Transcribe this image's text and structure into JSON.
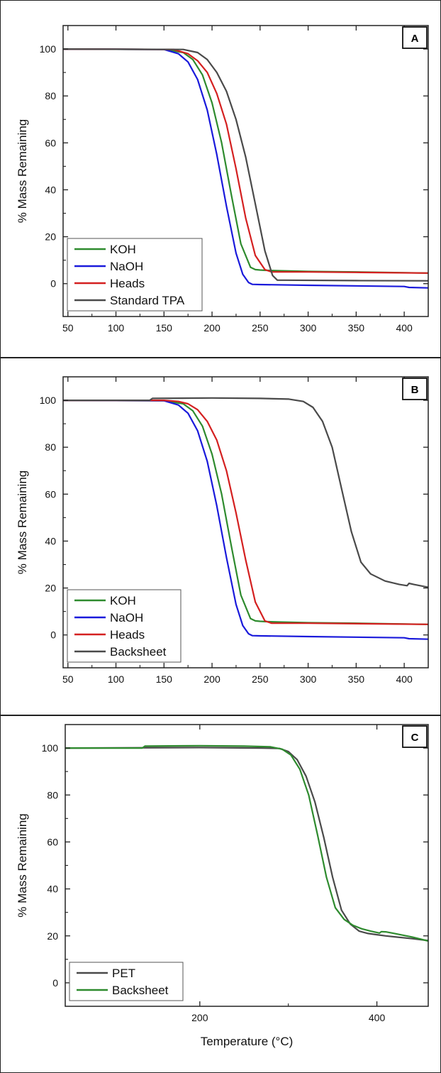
{
  "chart_data": [
    {
      "id": "A",
      "type": "line",
      "panel_label": "A",
      "xlabel": "",
      "ylabel": "% Mass Remaining",
      "xlim": [
        45,
        425
      ],
      "ylim": [
        -14,
        110
      ],
      "xticks": [
        50,
        100,
        150,
        200,
        250,
        300,
        350,
        400
      ],
      "yticks": [
        0,
        20,
        40,
        60,
        80,
        100
      ],
      "legend_position": "bottom-left",
      "series": [
        {
          "name": "KOH",
          "color": "#2e8b2e",
          "x": [
            45,
            150,
            170,
            180,
            190,
            200,
            210,
            220,
            230,
            240,
            245,
            250,
            255,
            270,
            300,
            350,
            425
          ],
          "y": [
            100,
            99.8,
            98.5,
            95.5,
            89,
            77,
            60,
            38,
            17,
            7,
            6,
            5.8,
            5.7,
            5.5,
            5.2,
            5,
            4.5
          ]
        },
        {
          "name": "NaOH",
          "color": "#1a1adb",
          "x": [
            45,
            150,
            165,
            175,
            185,
            195,
            205,
            215,
            225,
            232,
            238,
            242,
            250,
            300,
            400,
            405,
            425
          ],
          "y": [
            100,
            99.8,
            98,
            94.5,
            87,
            74,
            55,
            33,
            13,
            4,
            0.5,
            -0.3,
            -0.4,
            -0.7,
            -1.2,
            -1.6,
            -1.8
          ]
        },
        {
          "name": "Heads",
          "color": "#d42020",
          "x": [
            45,
            160,
            175,
            185,
            195,
            205,
            215,
            225,
            235,
            245,
            255,
            262,
            270,
            300,
            350,
            425
          ],
          "y": [
            100,
            99.8,
            98,
            95,
            90,
            81,
            68,
            49,
            28,
            12,
            6,
            5,
            5,
            5,
            4.8,
            4.5
          ]
        },
        {
          "name": "Standard TPA",
          "color": "#4a4a4a",
          "x": [
            45,
            170,
            185,
            195,
            205,
            215,
            225,
            235,
            245,
            255,
            263,
            268,
            275,
            350,
            425
          ],
          "y": [
            100,
            99.8,
            98.5,
            95.5,
            90,
            82,
            70,
            54,
            34,
            14,
            3.5,
            1.5,
            1.5,
            1.3,
            1.2
          ]
        }
      ]
    },
    {
      "id": "B",
      "type": "line",
      "panel_label": "B",
      "xlabel": "",
      "ylabel": "% Mass Remaining",
      "xlim": [
        45,
        425
      ],
      "ylim": [
        -14,
        110
      ],
      "xticks": [
        50,
        100,
        150,
        200,
        250,
        300,
        350,
        400
      ],
      "yticks": [
        0,
        20,
        40,
        60,
        80,
        100
      ],
      "legend_position": "bottom-left",
      "series": [
        {
          "name": "KOH",
          "color": "#2e8b2e",
          "x": [
            45,
            150,
            170,
            180,
            190,
            200,
            210,
            220,
            230,
            240,
            245,
            250,
            255,
            270,
            300,
            350,
            425
          ],
          "y": [
            100,
            99.8,
            98.5,
            95.5,
            89,
            77,
            60,
            38,
            17,
            7,
            6,
            5.8,
            5.7,
            5.5,
            5.2,
            5,
            4.5
          ]
        },
        {
          "name": "NaOH",
          "color": "#1a1adb",
          "x": [
            45,
            150,
            165,
            175,
            185,
            195,
            205,
            215,
            225,
            232,
            238,
            242,
            250,
            300,
            400,
            405,
            425
          ],
          "y": [
            100,
            99.8,
            98,
            94.5,
            87,
            74,
            55,
            33,
            13,
            4,
            0.5,
            -0.3,
            -0.4,
            -0.7,
            -1.2,
            -1.6,
            -1.8
          ]
        },
        {
          "name": "Heads",
          "color": "#d42020",
          "x": [
            45,
            150,
            165,
            175,
            185,
            195,
            205,
            215,
            225,
            235,
            245,
            255,
            262,
            270,
            300,
            425
          ],
          "y": [
            100,
            100,
            99.5,
            98.5,
            96,
            91,
            83,
            70,
            52,
            32,
            14,
            6,
            5,
            5,
            5,
            4.5
          ]
        },
        {
          "name": "Backsheet",
          "color": "#4a4a4a",
          "x": [
            45,
            135,
            138,
            200,
            250,
            280,
            295,
            305,
            315,
            325,
            335,
            345,
            355,
            365,
            380,
            395,
            403,
            405,
            410,
            425
          ],
          "y": [
            100,
            100,
            100.8,
            101,
            100.8,
            100.5,
            99.5,
            97,
            91,
            80,
            62,
            44,
            31,
            26,
            23,
            21.5,
            21,
            22,
            21.5,
            20.3
          ]
        }
      ]
    },
    {
      "id": "C",
      "type": "line",
      "panel_label": "C",
      "xlabel": "Temperature (°C)",
      "ylabel": "% Mass Remaining",
      "xlim": [
        48,
        458
      ],
      "ylim": [
        -10,
        110
      ],
      "xticks": [
        200,
        400
      ],
      "yticks": [
        0,
        20,
        40,
        60,
        80,
        100
      ],
      "legend_position": "bottom-left",
      "series": [
        {
          "name": "PET",
          "color": "#4a4a4a",
          "x": [
            48,
            200,
            270,
            290,
            300,
            310,
            320,
            330,
            340,
            350,
            360,
            370,
            380,
            390,
            400,
            410,
            420,
            440,
            458
          ],
          "y": [
            100,
            100.2,
            100,
            99.8,
            98.5,
            95,
            88,
            77,
            62,
            45,
            31,
            25,
            22,
            21,
            20.5,
            20,
            19.6,
            18.8,
            18
          ]
        },
        {
          "name": "Backsheet",
          "color": "#2e8b2e",
          "x": [
            48,
            135,
            138,
            200,
            250,
            280,
            293,
            303,
            313,
            323,
            333,
            343,
            353,
            363,
            373,
            383,
            393,
            403,
            405,
            410,
            420,
            440,
            458
          ],
          "y": [
            100,
            100,
            100.8,
            101,
            100.8,
            100.5,
            99.5,
            97,
            91,
            80,
            63,
            45,
            32,
            27,
            24.5,
            23,
            22,
            21.2,
            21.8,
            21.7,
            21,
            19.5,
            17.8
          ]
        }
      ]
    }
  ]
}
